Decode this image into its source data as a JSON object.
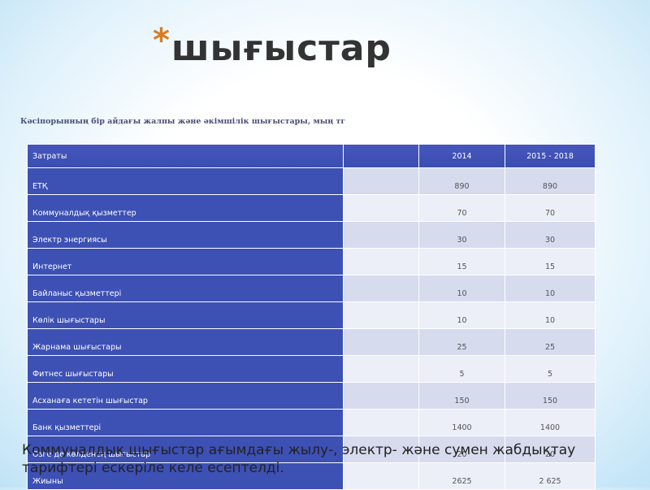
{
  "title": {
    "star": "*",
    "text": "шығыстар"
  },
  "table_caption": "Кәсіпорынның бір айдағы жалпы және әкімшілік шығыстары, мың тг",
  "table": {
    "headers": [
      "Затраты",
      "",
      "2014",
      "2015 - 2018"
    ],
    "rows": [
      {
        "name": "ЕТҚ",
        "v2014": "890",
        "v2015": "890"
      },
      {
        "name": "Коммуналдық қызметтер",
        "v2014": "70",
        "v2015": "70"
      },
      {
        "name": "Электр энергиясы",
        "v2014": "30",
        "v2015": "30"
      },
      {
        "name": "Интернет",
        "v2014": "15",
        "v2015": "15"
      },
      {
        "name": "Байланыс қызметтері",
        "v2014": "10",
        "v2015": "10"
      },
      {
        "name": "Көлік шығыстары",
        "v2014": "10",
        "v2015": "10"
      },
      {
        "name": "Жарнама шығыстары",
        "v2014": "25",
        "v2015": "25"
      },
      {
        "name": "Фитнес шығыстары",
        "v2014": "5",
        "v2015": "5"
      },
      {
        "name": "Асханаға кететін шығыстар",
        "v2014": "150",
        "v2015": "150"
      },
      {
        "name": "Банк қызметтері",
        "v2014": "1400",
        "v2015": "1400"
      },
      {
        "name": "Өзге де көлденең шығыстар",
        "v2014": "20",
        "v2015": "20"
      },
      {
        "name": "Жиыны",
        "v2014": "2625",
        "v2015": "2 625"
      }
    ]
  },
  "footnote": "Коммуналдық шығыстар ағымдағы жылу-, электр- және сумен жабдықтау тарифтері ескеріле келе есептелді.",
  "colors": {
    "header_blue": "#3f51b5",
    "row_light": "#eceff8",
    "row_dark": "#d6dbee",
    "star": "#d97b1e"
  }
}
